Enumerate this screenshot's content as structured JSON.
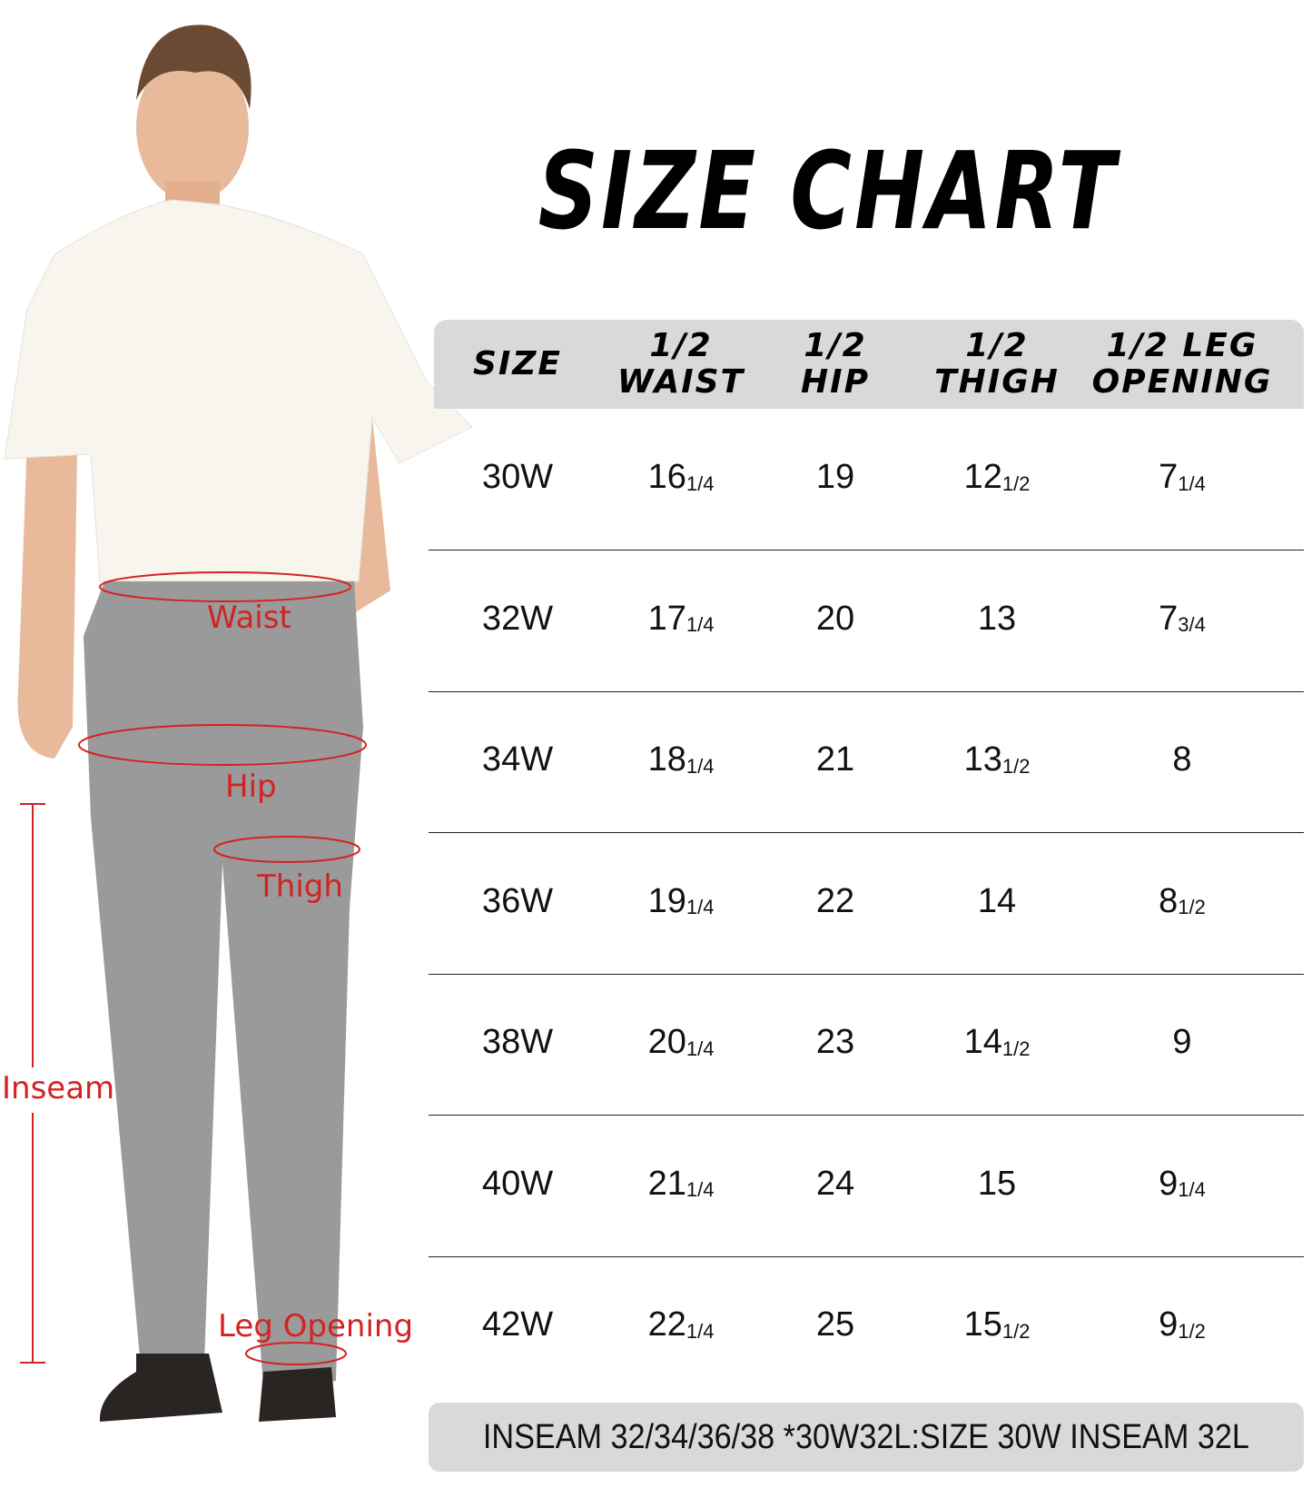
{
  "title": "SIZE CHART",
  "colors": {
    "header_bg": "#d9d9d9",
    "measure_label": "#d42222",
    "pants": "#9a9a9a",
    "shirt": "#f7f5ee"
  },
  "figure_labels": {
    "waist": "Waist",
    "hip": "Hip",
    "thigh": "Thigh",
    "inseam": "Inseam",
    "leg_opening": "Leg Opening"
  },
  "table": {
    "headers": [
      "SIZE",
      "1/2\nWAIST",
      "1/2\nHIP",
      "1/2\nTHIGH",
      "1/2 LEG\nOPENING"
    ],
    "rows": [
      [
        {
          "w": "30W"
        },
        {
          "w": "16",
          "f": "1/4"
        },
        {
          "w": "19"
        },
        {
          "w": "12",
          "f": "1/2"
        },
        {
          "w": "7",
          "f": "1/4"
        }
      ],
      [
        {
          "w": "32W"
        },
        {
          "w": "17",
          "f": "1/4"
        },
        {
          "w": "20"
        },
        {
          "w": "13"
        },
        {
          "w": "7",
          "f": "3/4"
        }
      ],
      [
        {
          "w": "34W"
        },
        {
          "w": "18",
          "f": "1/4"
        },
        {
          "w": "21"
        },
        {
          "w": "13",
          "f": "1/2"
        },
        {
          "w": "8"
        }
      ],
      [
        {
          "w": "36W"
        },
        {
          "w": "19",
          "f": "1/4"
        },
        {
          "w": "22"
        },
        {
          "w": "14"
        },
        {
          "w": "8",
          "f": "1/2"
        }
      ],
      [
        {
          "w": "38W"
        },
        {
          "w": "20",
          "f": "1/4"
        },
        {
          "w": "23"
        },
        {
          "w": "14",
          "f": "1/2"
        },
        {
          "w": "9"
        }
      ],
      [
        {
          "w": "40W"
        },
        {
          "w": "21",
          "f": "1/4"
        },
        {
          "w": "24"
        },
        {
          "w": "15"
        },
        {
          "w": "9",
          "f": "1/4"
        }
      ],
      [
        {
          "w": "42W"
        },
        {
          "w": "22",
          "f": "1/4"
        },
        {
          "w": "25"
        },
        {
          "w": "15",
          "f": "1/2"
        },
        {
          "w": "9",
          "f": "1/2"
        }
      ]
    ]
  },
  "footer": "INSEAM 32/34/36/38 *30W32L:SIZE 30W INSEAM 32L"
}
